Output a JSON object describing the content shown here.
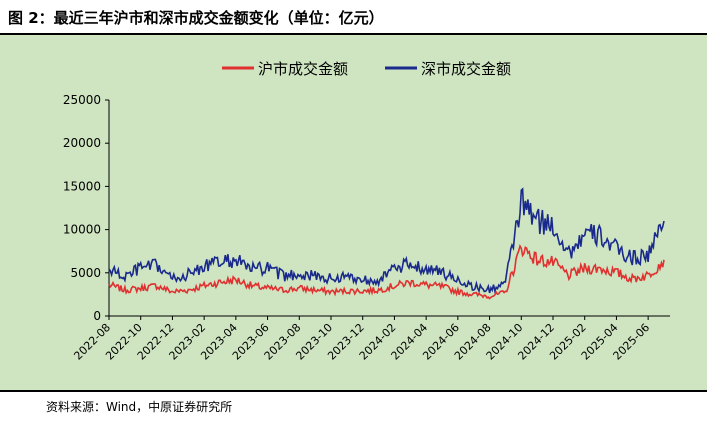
{
  "figure_title": "图 2：最近三年沪市和深市成交金额变化（单位：亿元）",
  "source_note": "资料来源：Wind，中原证券研究所",
  "colors": {
    "sh": "#e03030",
    "sz": "#1a2a8c",
    "plot_bg": "#cfe5c2"
  },
  "chart_data": {
    "type": "line",
    "title": "",
    "ylabel": "",
    "xlabel": "",
    "ylim": [
      0,
      25000
    ],
    "yticks": [
      0,
      5000,
      10000,
      15000,
      20000,
      25000
    ],
    "xlim": [
      "2022-08",
      "2025-07"
    ],
    "x_tick_labels": [
      "2022-08",
      "2022-10",
      "2022-12",
      "2023-02",
      "2023-04",
      "2023-06",
      "2023-08",
      "2023-10",
      "2023-12",
      "2024-02",
      "2024-04",
      "2024-06",
      "2024-08",
      "2024-10",
      "2024-12",
      "2025-02",
      "2025-04",
      "2025-06"
    ],
    "legend_position": "top-center",
    "x": [
      "2022-08",
      "2022-09",
      "2022-10",
      "2022-11",
      "2022-12",
      "2023-01",
      "2023-02",
      "2023-03",
      "2023-04",
      "2023-05",
      "2023-06",
      "2023-07",
      "2023-08",
      "2023-09",
      "2023-10",
      "2023-11",
      "2023-12",
      "2024-01",
      "2024-02",
      "2024-03",
      "2024-04",
      "2024-05",
      "2024-06",
      "2024-07",
      "2024-08",
      "2024-09",
      "2024-10",
      "2024-11",
      "2024-12",
      "2025-01",
      "2025-02",
      "2025-03",
      "2025-04",
      "2025-05",
      "2025-06",
      "2025-07"
    ],
    "series": [
      {
        "name": "沪市成交金额",
        "key": "sh",
        "values": [
          3600,
          3000,
          3200,
          3500,
          2800,
          3000,
          3500,
          3900,
          4200,
          3500,
          3200,
          3000,
          3200,
          3000,
          2800,
          2900,
          2900,
          3000,
          3500,
          3900,
          3600,
          3400,
          2800,
          2500,
          2300,
          2700,
          8000,
          6500,
          6200,
          4700,
          5500,
          5500,
          5000,
          4300,
          4700,
          6500
        ]
      },
      {
        "name": "深市成交金额",
        "key": "sz",
        "values": [
          5400,
          4500,
          5600,
          5800,
          4300,
          4800,
          5800,
          6200,
          6500,
          5400,
          5500,
          4600,
          4900,
          4600,
          4300,
          4600,
          4200,
          4200,
          5400,
          6000,
          5500,
          5000,
          4200,
          3400,
          3000,
          3900,
          13200,
          11000,
          10500,
          7300,
          9400,
          9300,
          7700,
          6700,
          7100,
          11000
        ]
      }
    ]
  }
}
